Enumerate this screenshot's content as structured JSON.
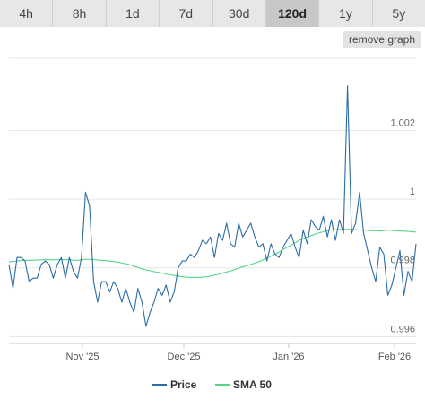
{
  "ranges": [
    {
      "label": "4h",
      "active": false
    },
    {
      "label": "8h",
      "active": false
    },
    {
      "label": "1d",
      "active": false
    },
    {
      "label": "7d",
      "active": false
    },
    {
      "label": "30d",
      "active": false
    },
    {
      "label": "120d",
      "active": true
    },
    {
      "label": "1y",
      "active": false
    },
    {
      "label": "5y",
      "active": false
    }
  ],
  "remove_graph_label": "remove graph",
  "chart_data": {
    "type": "line",
    "x_ticks": [
      "Nov '25",
      "Dec '25",
      "Jan '26",
      "Feb '26"
    ],
    "y_ticks": [
      0.996,
      0.998,
      1,
      1.002
    ],
    "y_tick_labels": [
      "0.996",
      "0.998",
      "1",
      "1.002"
    ],
    "ylim": [
      0.9958,
      1.0041
    ],
    "grid": true,
    "legend_position": "bottom",
    "series": [
      {
        "name": "Price",
        "color": "#2c6ca4",
        "values": [
          0.9981,
          0.9974,
          0.9983,
          0.9983,
          0.9982,
          0.9976,
          0.9977,
          0.9977,
          0.9981,
          0.9982,
          0.9981,
          0.9977,
          0.9981,
          0.9983,
          0.9977,
          0.9983,
          0.9979,
          0.9977,
          0.9983,
          1.0002,
          0.9998,
          0.9976,
          0.997,
          0.9976,
          0.9976,
          0.9973,
          0.9976,
          0.9974,
          0.997,
          0.9974,
          0.997,
          0.9967,
          0.9974,
          0.997,
          0.9963,
          0.9967,
          0.997,
          0.9974,
          0.9972,
          0.9975,
          0.997,
          0.9973,
          0.998,
          0.9982,
          0.9982,
          0.9984,
          0.9983,
          0.9985,
          0.9988,
          0.9987,
          0.9989,
          0.9983,
          0.999,
          0.9988,
          0.9993,
          0.9987,
          0.9986,
          0.9993,
          0.9989,
          0.9991,
          0.9993,
          0.9989,
          0.9986,
          0.9987,
          0.9982,
          0.9987,
          0.9984,
          0.9983,
          0.9986,
          0.9988,
          0.999,
          0.9986,
          0.9983,
          0.9991,
          0.9987,
          0.9994,
          0.9992,
          0.9991,
          0.9995,
          0.9989,
          0.9994,
          0.9988,
          0.9994,
          0.999,
          1.0033,
          0.999,
          0.9993,
          1.0002,
          0.999,
          0.9985,
          0.998,
          0.9976,
          0.9986,
          0.9984,
          0.9972,
          0.9975,
          0.998,
          0.9985,
          0.9972,
          0.9979,
          0.9976,
          0.9987
        ]
      },
      {
        "name": "SMA 50",
        "color": "#55d48c",
        "values": [
          0.99817,
          0.99819,
          0.9982,
          0.99821,
          0.99822,
          0.99822,
          0.99822,
          0.99823,
          0.99823,
          0.99824,
          0.99824,
          0.99823,
          0.99824,
          0.99824,
          0.99824,
          0.99824,
          0.99822,
          0.99822,
          0.99823,
          0.99825,
          0.99825,
          0.99824,
          0.99823,
          0.99822,
          0.99821,
          0.9982,
          0.99818,
          0.99817,
          0.99814,
          0.99812,
          0.99809,
          0.99805,
          0.99801,
          0.99797,
          0.99794,
          0.99792,
          0.99789,
          0.99787,
          0.99785,
          0.99782,
          0.9978,
          0.99778,
          0.99776,
          0.99774,
          0.99773,
          0.99772,
          0.99772,
          0.99772,
          0.99773,
          0.99774,
          0.99776,
          0.99779,
          0.99781,
          0.99785,
          0.99788,
          0.99791,
          0.99795,
          0.99799,
          0.99803,
          0.99806,
          0.9981,
          0.99814,
          0.99818,
          0.99823,
          0.99828,
          0.99834,
          0.9984,
          0.99846,
          0.99853,
          0.9986,
          0.99866,
          0.99873,
          0.9988,
          0.99885,
          0.9989,
          0.99894,
          0.99898,
          0.99902,
          0.99905,
          0.99908,
          0.9991,
          0.99911,
          0.99912,
          0.99912,
          0.99912,
          0.99912,
          0.99911,
          0.9991,
          0.9991,
          0.99909,
          0.99908,
          0.99908,
          0.99907,
          0.99908,
          0.9991,
          0.99909,
          0.99908,
          0.99907,
          0.99907,
          0.99906,
          0.99905,
          0.99904
        ]
      }
    ]
  }
}
